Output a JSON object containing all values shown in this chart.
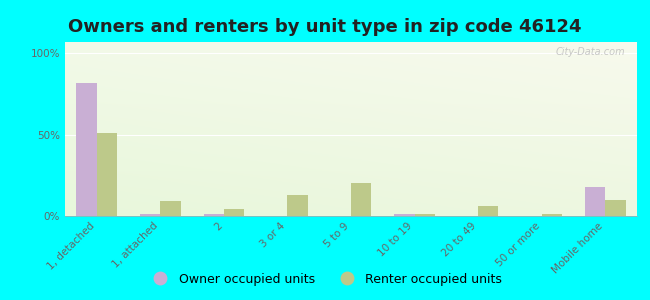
{
  "title": "Owners and renters by unit type in zip code 46124",
  "categories": [
    "1, detached",
    "1, attached",
    "2",
    "3 or 4",
    "5 to 9",
    "10 to 19",
    "20 to 49",
    "50 or more",
    "Mobile home"
  ],
  "owner_values": [
    82,
    1,
    1,
    0,
    0,
    1,
    0,
    0,
    18
  ],
  "renter_values": [
    51,
    9,
    4,
    13,
    20,
    1,
    6,
    1,
    10
  ],
  "owner_color": "#c9afd4",
  "renter_color": "#bdc98a",
  "bg_color": "#00ffff",
  "yticks": [
    0,
    50,
    100
  ],
  "ylabels": [
    "0%",
    "50%",
    "100%"
  ],
  "ylim": [
    0,
    107
  ],
  "watermark": "City-Data.com",
  "legend_owner": "Owner occupied units",
  "legend_renter": "Renter occupied units",
  "title_fontsize": 13,
  "tick_fontsize": 7.5,
  "legend_fontsize": 9
}
